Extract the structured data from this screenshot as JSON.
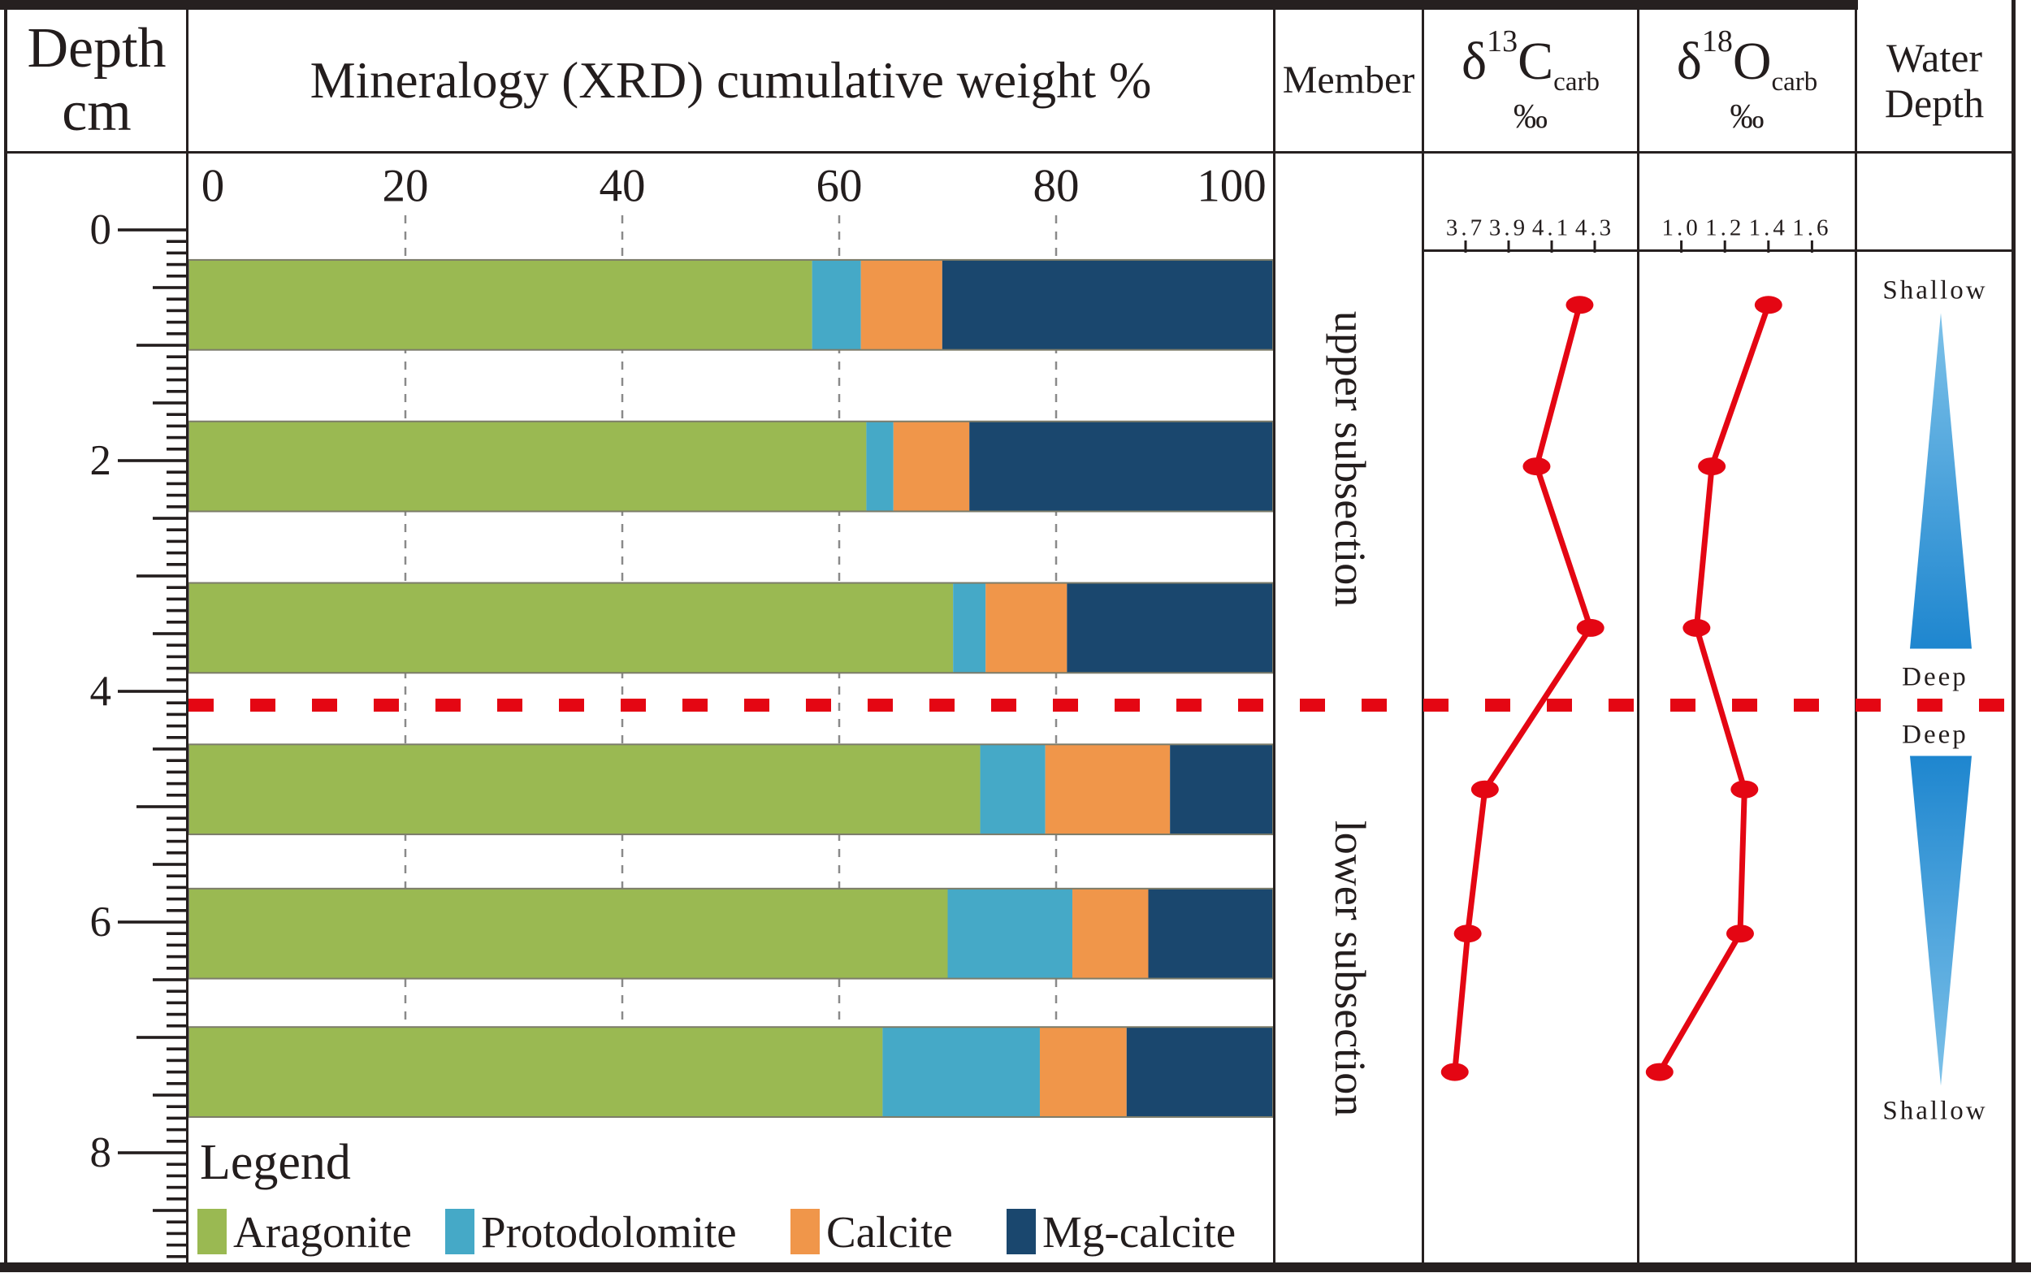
{
  "header": {
    "depth_line1": "Depth",
    "depth_line2": "cm",
    "mineralogy": "Mineralogy (XRD) cumulative weight %",
    "member": "Member",
    "d13c": {
      "delta": "δ",
      "sup": "13",
      "element": "C",
      "sub": "carb",
      "unit": "‰"
    },
    "d18o": {
      "delta": "δ",
      "sup": "18",
      "element": "O",
      "sub": "carb",
      "unit": "‰"
    },
    "water_line1": "Water",
    "water_line2": "Depth"
  },
  "member": {
    "upper": "upper subsection",
    "lower": "lower subsection"
  },
  "depth_axis": {
    "unit": "cm",
    "tick_labels": [
      0,
      2,
      4,
      6,
      8
    ],
    "min": 0,
    "max": 8.9,
    "minor_step_cm": 0.1
  },
  "boundary": {
    "depth_cm": 4.12,
    "style": "dashed",
    "color": "#e40613"
  },
  "legend": {
    "title": "Legend",
    "items": [
      {
        "label": "Aragonite",
        "color": "#9ab952"
      },
      {
        "label": "Protodolomite",
        "color": "#45a9c7"
      },
      {
        "label": "Calcite",
        "color": "#f0964a"
      },
      {
        "label": "Mg-calcite",
        "color": "#1a476e"
      }
    ]
  },
  "water_depth": {
    "top_label": "Shallow",
    "upper_deep_label": "Deep",
    "lower_deep_label": "Deep",
    "bottom_label": "Shallow",
    "upper_triangle": {
      "apex_depth_cm": 0.72,
      "base_depth_cm": 3.63,
      "trend": "deepening-downward"
    },
    "lower_triangle": {
      "base_depth_cm": 4.56,
      "apex_depth_cm": 7.42,
      "trend": "shallowing-downward"
    },
    "color_light": "#7ec2e9",
    "color_dark": "#1e86cf"
  },
  "chart_data": [
    {
      "type": "bar",
      "title": "Mineralogy (XRD) cumulative weight %",
      "orientation": "horizontal_stacked",
      "xlim": [
        0,
        100
      ],
      "x_ticks": [
        0,
        20,
        40,
        60,
        80,
        100
      ],
      "grid": true,
      "ylabel": "Depth cm",
      "categories_depth_cm": [
        0.65,
        2.05,
        3.45,
        4.85,
        6.1,
        7.3
      ],
      "bar_thickness_cm": 0.78,
      "series": [
        {
          "name": "Aragonite",
          "color": "#9ab952",
          "values": [
            57.5,
            62.5,
            70.5,
            73.0,
            70.0,
            64.0
          ]
        },
        {
          "name": "Protodolomite",
          "color": "#45a9c7",
          "values": [
            4.5,
            2.5,
            3.0,
            6.0,
            11.5,
            14.5
          ]
        },
        {
          "name": "Calcite",
          "color": "#f0964a",
          "values": [
            7.5,
            7.0,
            7.5,
            11.5,
            7.0,
            8.0
          ]
        },
        {
          "name": "Mg-calcite",
          "color": "#1a476e",
          "values": [
            30.5,
            28.0,
            19.0,
            9.5,
            11.5,
            13.5
          ]
        }
      ]
    },
    {
      "type": "line",
      "title": "δ13C carb ‰",
      "x_ticks": [
        3.7,
        3.9,
        4.1,
        4.3
      ],
      "xlim": [
        3.5,
        4.5
      ],
      "depth_cm": [
        0.65,
        2.05,
        3.45,
        4.85,
        6.1,
        7.3
      ],
      "values": [
        4.23,
        4.03,
        4.28,
        3.79,
        3.71,
        3.65
      ],
      "color": "#e40613",
      "marker": "ellipse"
    },
    {
      "type": "line",
      "title": "δ18O carb ‰",
      "x_ticks": [
        1.0,
        1.2,
        1.4,
        1.6
      ],
      "xlim": [
        0.8,
        1.8
      ],
      "depth_cm": [
        0.65,
        2.05,
        3.45,
        4.85,
        6.1,
        7.3
      ],
      "values": [
        1.4,
        1.14,
        1.07,
        1.29,
        1.27,
        0.9
      ],
      "color": "#e40613",
      "marker": "ellipse"
    }
  ]
}
